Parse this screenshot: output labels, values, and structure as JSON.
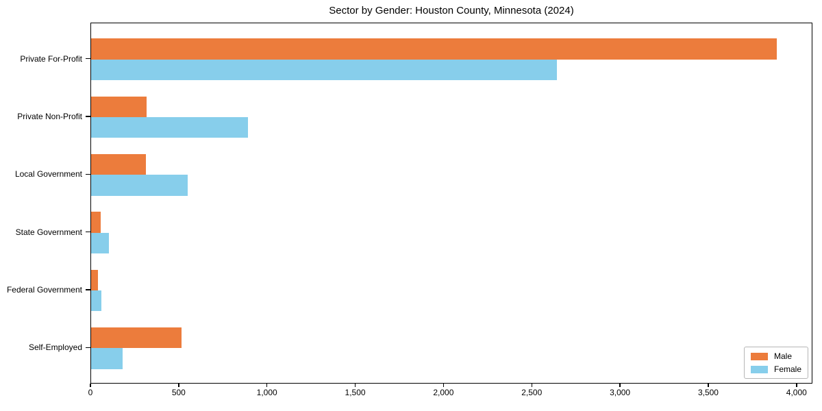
{
  "chart_data": {
    "type": "bar",
    "orientation": "horizontal",
    "title": "Sector by Gender: Houston County, Minnesota (2024)",
    "categories": [
      "Private For-Profit",
      "Private Non-Profit",
      "Local Government",
      "State Government",
      "Federal Government",
      "Self-Employed"
    ],
    "series": [
      {
        "name": "Male",
        "color": "#EC7C3C",
        "values": [
          3895,
          315,
          310,
          55,
          40,
          515
        ]
      },
      {
        "name": "Female",
        "color": "#87CEEB",
        "values": [
          2645,
          890,
          550,
          100,
          60,
          180
        ]
      }
    ],
    "xlabel": "",
    "ylabel": "",
    "xlim": [
      0,
      4090
    ],
    "xticks": [
      0,
      500,
      1000,
      1500,
      2000,
      2500,
      3000,
      3500,
      4000
    ],
    "xtick_labels": [
      "0",
      "500",
      "1,000",
      "1,500",
      "2,000",
      "2,500",
      "3,000",
      "3,500",
      "4,000"
    ],
    "legend_position": "lower right",
    "grid": false,
    "background_color": "#ffffff",
    "text_color": "#000000"
  }
}
